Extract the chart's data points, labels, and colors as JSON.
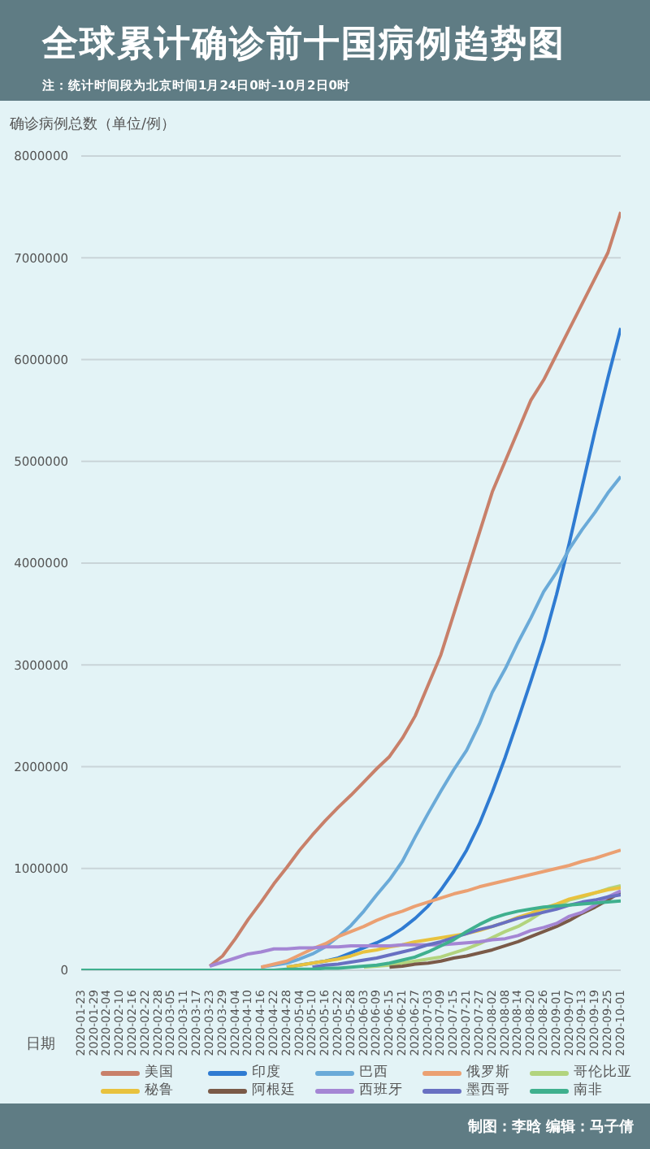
{
  "chart_data": {
    "type": "line",
    "title": "全球累计确诊前十国病例趋势图",
    "subtitle": "注：统计时间段为北京时间1月24日0时–10月2日0时",
    "ylabel": "确诊病例总数（单位/例）",
    "xlabel": "日期",
    "annotations": [
      "制图：李晗 编辑：马子倩"
    ],
    "categories": [
      "2020-01-23",
      "2020-01-29",
      "2020-02-04",
      "2020-02-10",
      "2020-02-16",
      "2020-02-22",
      "2020-02-28",
      "2020-03-05",
      "2020-03-11",
      "2020-03-17",
      "2020-03-23",
      "2020-03-29",
      "2020-04-04",
      "2020-04-10",
      "2020-04-16",
      "2020-04-22",
      "2020-04-28",
      "2020-05-04",
      "2020-05-10",
      "2020-05-16",
      "2020-05-22",
      "2020-05-28",
      "2020-06-03",
      "2020-06-09",
      "2020-06-15",
      "2020-06-21",
      "2020-06-27",
      "2020-07-03",
      "2020-07-09",
      "2020-07-15",
      "2020-07-21",
      "2020-07-27",
      "2020-08-02",
      "2020-08-08",
      "2020-08-14",
      "2020-08-20",
      "2020-08-26",
      "2020-09-01",
      "2020-09-07",
      "2020-09-13",
      "2020-09-19",
      "2020-09-25",
      "2020-10-01"
    ],
    "series": [
      {
        "name": "美国",
        "color": "#c8806a",
        "values": [
          null,
          null,
          null,
          null,
          null,
          null,
          null,
          null,
          null,
          null,
          40000,
          140000,
          310000,
          500000,
          670000,
          850000,
          1010000,
          1180000,
          1330000,
          1470000,
          1600000,
          1720000,
          1850000,
          1980000,
          2100000,
          2280000,
          2500000,
          2800000,
          3100000,
          3500000,
          3900000,
          4300000,
          4700000,
          5000000,
          5300000,
          5600000,
          5800000,
          6050000,
          6300000,
          6550000,
          6800000,
          7050000,
          7450000
        ]
      },
      {
        "name": "印度",
        "color": "#2f7bd2",
        "values": [
          null,
          null,
          null,
          null,
          null,
          null,
          null,
          null,
          null,
          null,
          null,
          null,
          null,
          null,
          null,
          null,
          30000,
          50000,
          70000,
          90000,
          120000,
          170000,
          220000,
          270000,
          330000,
          410000,
          510000,
          630000,
          790000,
          970000,
          1180000,
          1440000,
          1750000,
          2090000,
          2460000,
          2840000,
          3230000,
          3690000,
          4200000,
          4750000,
          5300000,
          5820000,
          6310000
        ]
      },
      {
        "name": "巴西",
        "color": "#6aaad8",
        "values": [
          null,
          null,
          null,
          null,
          null,
          null,
          null,
          null,
          null,
          null,
          null,
          null,
          null,
          null,
          30000,
          50000,
          70000,
          110000,
          160000,
          230000,
          330000,
          440000,
          580000,
          740000,
          890000,
          1070000,
          1310000,
          1540000,
          1760000,
          1970000,
          2160000,
          2420000,
          2730000,
          2960000,
          3220000,
          3460000,
          3720000,
          3910000,
          4140000,
          4330000,
          4500000,
          4690000,
          4850000
        ]
      },
      {
        "name": "俄罗斯",
        "color": "#eba072",
        "values": [
          null,
          null,
          null,
          null,
          null,
          null,
          null,
          null,
          null,
          null,
          null,
          null,
          null,
          null,
          30000,
          60000,
          90000,
          150000,
          210000,
          260000,
          330000,
          380000,
          430000,
          490000,
          540000,
          580000,
          630000,
          670000,
          710000,
          750000,
          780000,
          820000,
          850000,
          880000,
          910000,
          940000,
          970000,
          1000000,
          1030000,
          1070000,
          1100000,
          1140000,
          1180000
        ]
      },
      {
        "name": "哥伦比亚",
        "color": "#b2d47e",
        "values": [
          null,
          null,
          null,
          null,
          null,
          null,
          null,
          null,
          null,
          null,
          null,
          null,
          null,
          null,
          null,
          null,
          null,
          null,
          null,
          null,
          null,
          null,
          30000,
          40000,
          50000,
          70000,
          90000,
          110000,
          130000,
          170000,
          210000,
          260000,
          320000,
          380000,
          430000,
          500000,
          580000,
          620000,
          690000,
          720000,
          760000,
          800000,
          830000
        ]
      },
      {
        "name": "秘鲁",
        "color": "#e8c23e",
        "values": [
          null,
          null,
          null,
          null,
          null,
          null,
          null,
          null,
          null,
          null,
          null,
          null,
          null,
          null,
          null,
          null,
          30000,
          50000,
          70000,
          90000,
          110000,
          140000,
          180000,
          200000,
          230000,
          250000,
          280000,
          300000,
          320000,
          340000,
          360000,
          390000,
          430000,
          470000,
          520000,
          560000,
          610000,
          650000,
          700000,
          730000,
          760000,
          790000,
          810000
        ]
      },
      {
        "name": "阿根廷",
        "color": "#7a5a48",
        "values": [
          null,
          null,
          null,
          null,
          null,
          null,
          null,
          null,
          null,
          null,
          null,
          null,
          null,
          null,
          null,
          null,
          null,
          null,
          null,
          null,
          null,
          null,
          null,
          null,
          30000,
          40000,
          60000,
          70000,
          90000,
          120000,
          140000,
          170000,
          200000,
          240000,
          280000,
          330000,
          380000,
          430000,
          490000,
          560000,
          620000,
          690000,
          770000
        ]
      },
      {
        "name": "西班牙",
        "color": "#a486d4",
        "values": [
          null,
          null,
          null,
          null,
          null,
          null,
          null,
          null,
          null,
          null,
          40000,
          80000,
          120000,
          160000,
          180000,
          210000,
          210000,
          220000,
          220000,
          230000,
          230000,
          240000,
          240000,
          240000,
          240000,
          250000,
          250000,
          250000,
          250000,
          260000,
          270000,
          280000,
          300000,
          310000,
          340000,
          390000,
          420000,
          460000,
          530000,
          570000,
          640000,
          720000,
          780000
        ]
      },
      {
        "name": "墨西哥",
        "color": "#6870c2",
        "values": [
          null,
          null,
          null,
          null,
          null,
          null,
          null,
          null,
          null,
          null,
          null,
          null,
          null,
          null,
          null,
          null,
          null,
          null,
          30000,
          50000,
          60000,
          80000,
          100000,
          120000,
          150000,
          180000,
          210000,
          250000,
          280000,
          320000,
          360000,
          400000,
          430000,
          470000,
          510000,
          540000,
          570000,
          600000,
          640000,
          670000,
          690000,
          720000,
          740000
        ]
      },
      {
        "name": "南非",
        "color": "#3fb08e",
        "values": [
          0,
          0,
          0,
          0,
          0,
          0,
          0,
          0,
          0,
          0,
          0,
          0,
          0,
          0,
          0,
          0,
          10000,
          10000,
          10000,
          20000,
          20000,
          30000,
          40000,
          50000,
          70000,
          100000,
          130000,
          180000,
          240000,
          300000,
          380000,
          450000,
          510000,
          550000,
          580000,
          600000,
          620000,
          630000,
          640000,
          650000,
          660000,
          670000,
          680000
        ]
      }
    ],
    "ylim": [
      0,
      8000000
    ],
    "yticks": [
      0,
      1000000,
      2000000,
      3000000,
      4000000,
      5000000,
      6000000,
      7000000,
      8000000
    ],
    "grid": "y",
    "legend": "bottom"
  }
}
